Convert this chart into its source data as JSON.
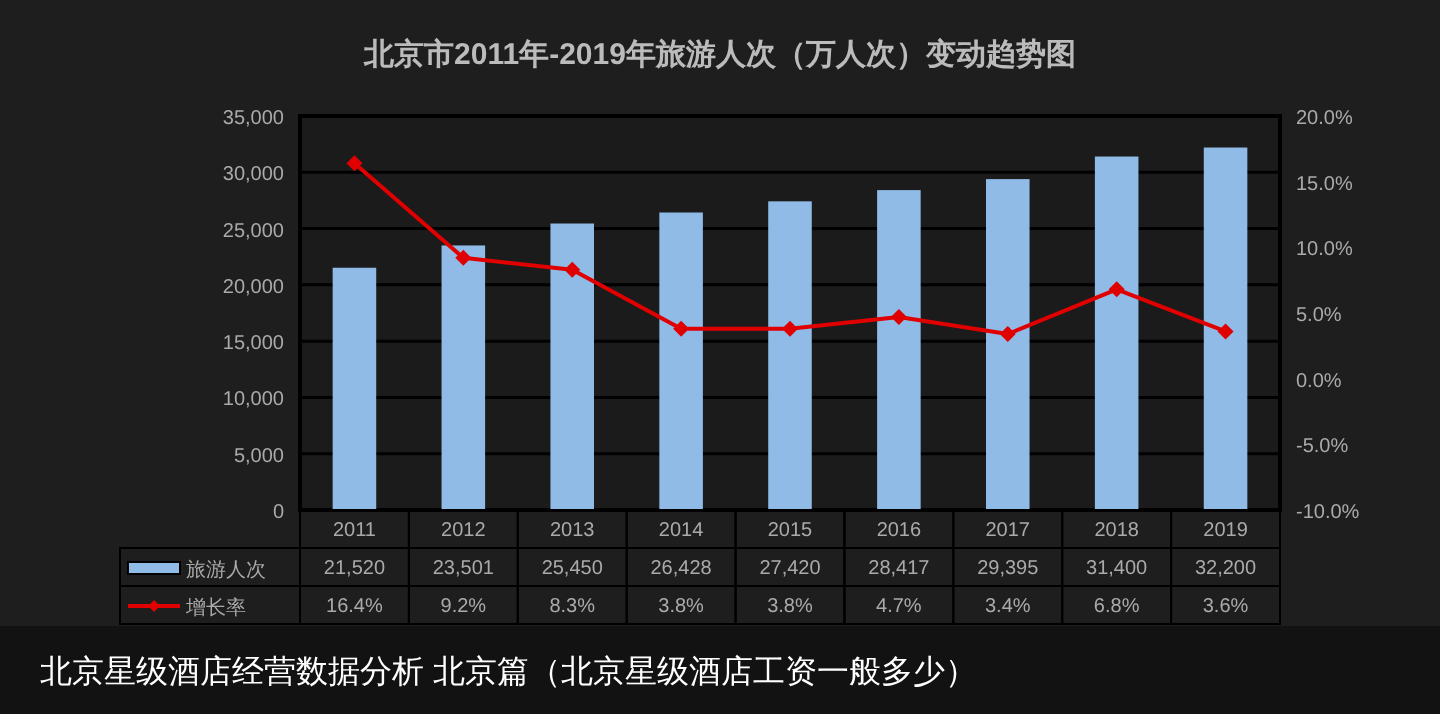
{
  "chart_data": {
    "type": "bar",
    "title": "北京市2011年-2019年旅游人次（万人次）变动趋势图",
    "categories": [
      "2011",
      "2012",
      "2013",
      "2014",
      "2015",
      "2016",
      "2017",
      "2018",
      "2019"
    ],
    "series": [
      {
        "name": "旅游人次",
        "color": "#8fbbe6",
        "values": [
          21520,
          23501,
          25450,
          26428,
          27420,
          28417,
          29395,
          31400,
          32200
        ],
        "value_labels": [
          "21,520",
          "23,501",
          "25,450",
          "26,428",
          "27,420",
          "28,417",
          "29,395",
          "31,400",
          "32,200"
        ]
      },
      {
        "name": "增长率",
        "type": "line",
        "axis": "y2",
        "color": "#e00000",
        "values": [
          16.4,
          9.2,
          8.3,
          3.8,
          3.8,
          4.7,
          3.4,
          6.8,
          3.6
        ],
        "value_labels": [
          "16.4%",
          "9.2%",
          "8.3%",
          "3.8%",
          "3.8%",
          "4.7%",
          "3.4%",
          "6.8%",
          "3.6%"
        ]
      }
    ],
    "ylim": [
      0,
      35000
    ],
    "yticks": [
      {
        "value": 0,
        "label": "0"
      },
      {
        "value": 5000,
        "label": "5,000"
      },
      {
        "value": 10000,
        "label": "10,000"
      },
      {
        "value": 15000,
        "label": "15,000"
      },
      {
        "value": 20000,
        "label": "20,000"
      },
      {
        "value": 25000,
        "label": "25,000"
      },
      {
        "value": 30000,
        "label": "30,000"
      },
      {
        "value": 35000,
        "label": "35,000"
      }
    ],
    "y2lim": [
      -10,
      20
    ],
    "y2ticks": [
      {
        "value": -10,
        "label": "-10.0%"
      },
      {
        "value": -5,
        "label": "-5.0%"
      },
      {
        "value": 0,
        "label": "0.0%"
      },
      {
        "value": 5,
        "label": "5.0%"
      },
      {
        "value": 10,
        "label": "10.0%"
      },
      {
        "value": 15,
        "label": "15.0%"
      },
      {
        "value": 20,
        "label": "20.0%"
      }
    ],
    "grid": "y",
    "marker": "diamond",
    "legend": "bottom left",
    "annotations": [
      "北京星级酒店经营数据分析  北京篇（北京星级酒店工资一般多少）"
    ]
  }
}
